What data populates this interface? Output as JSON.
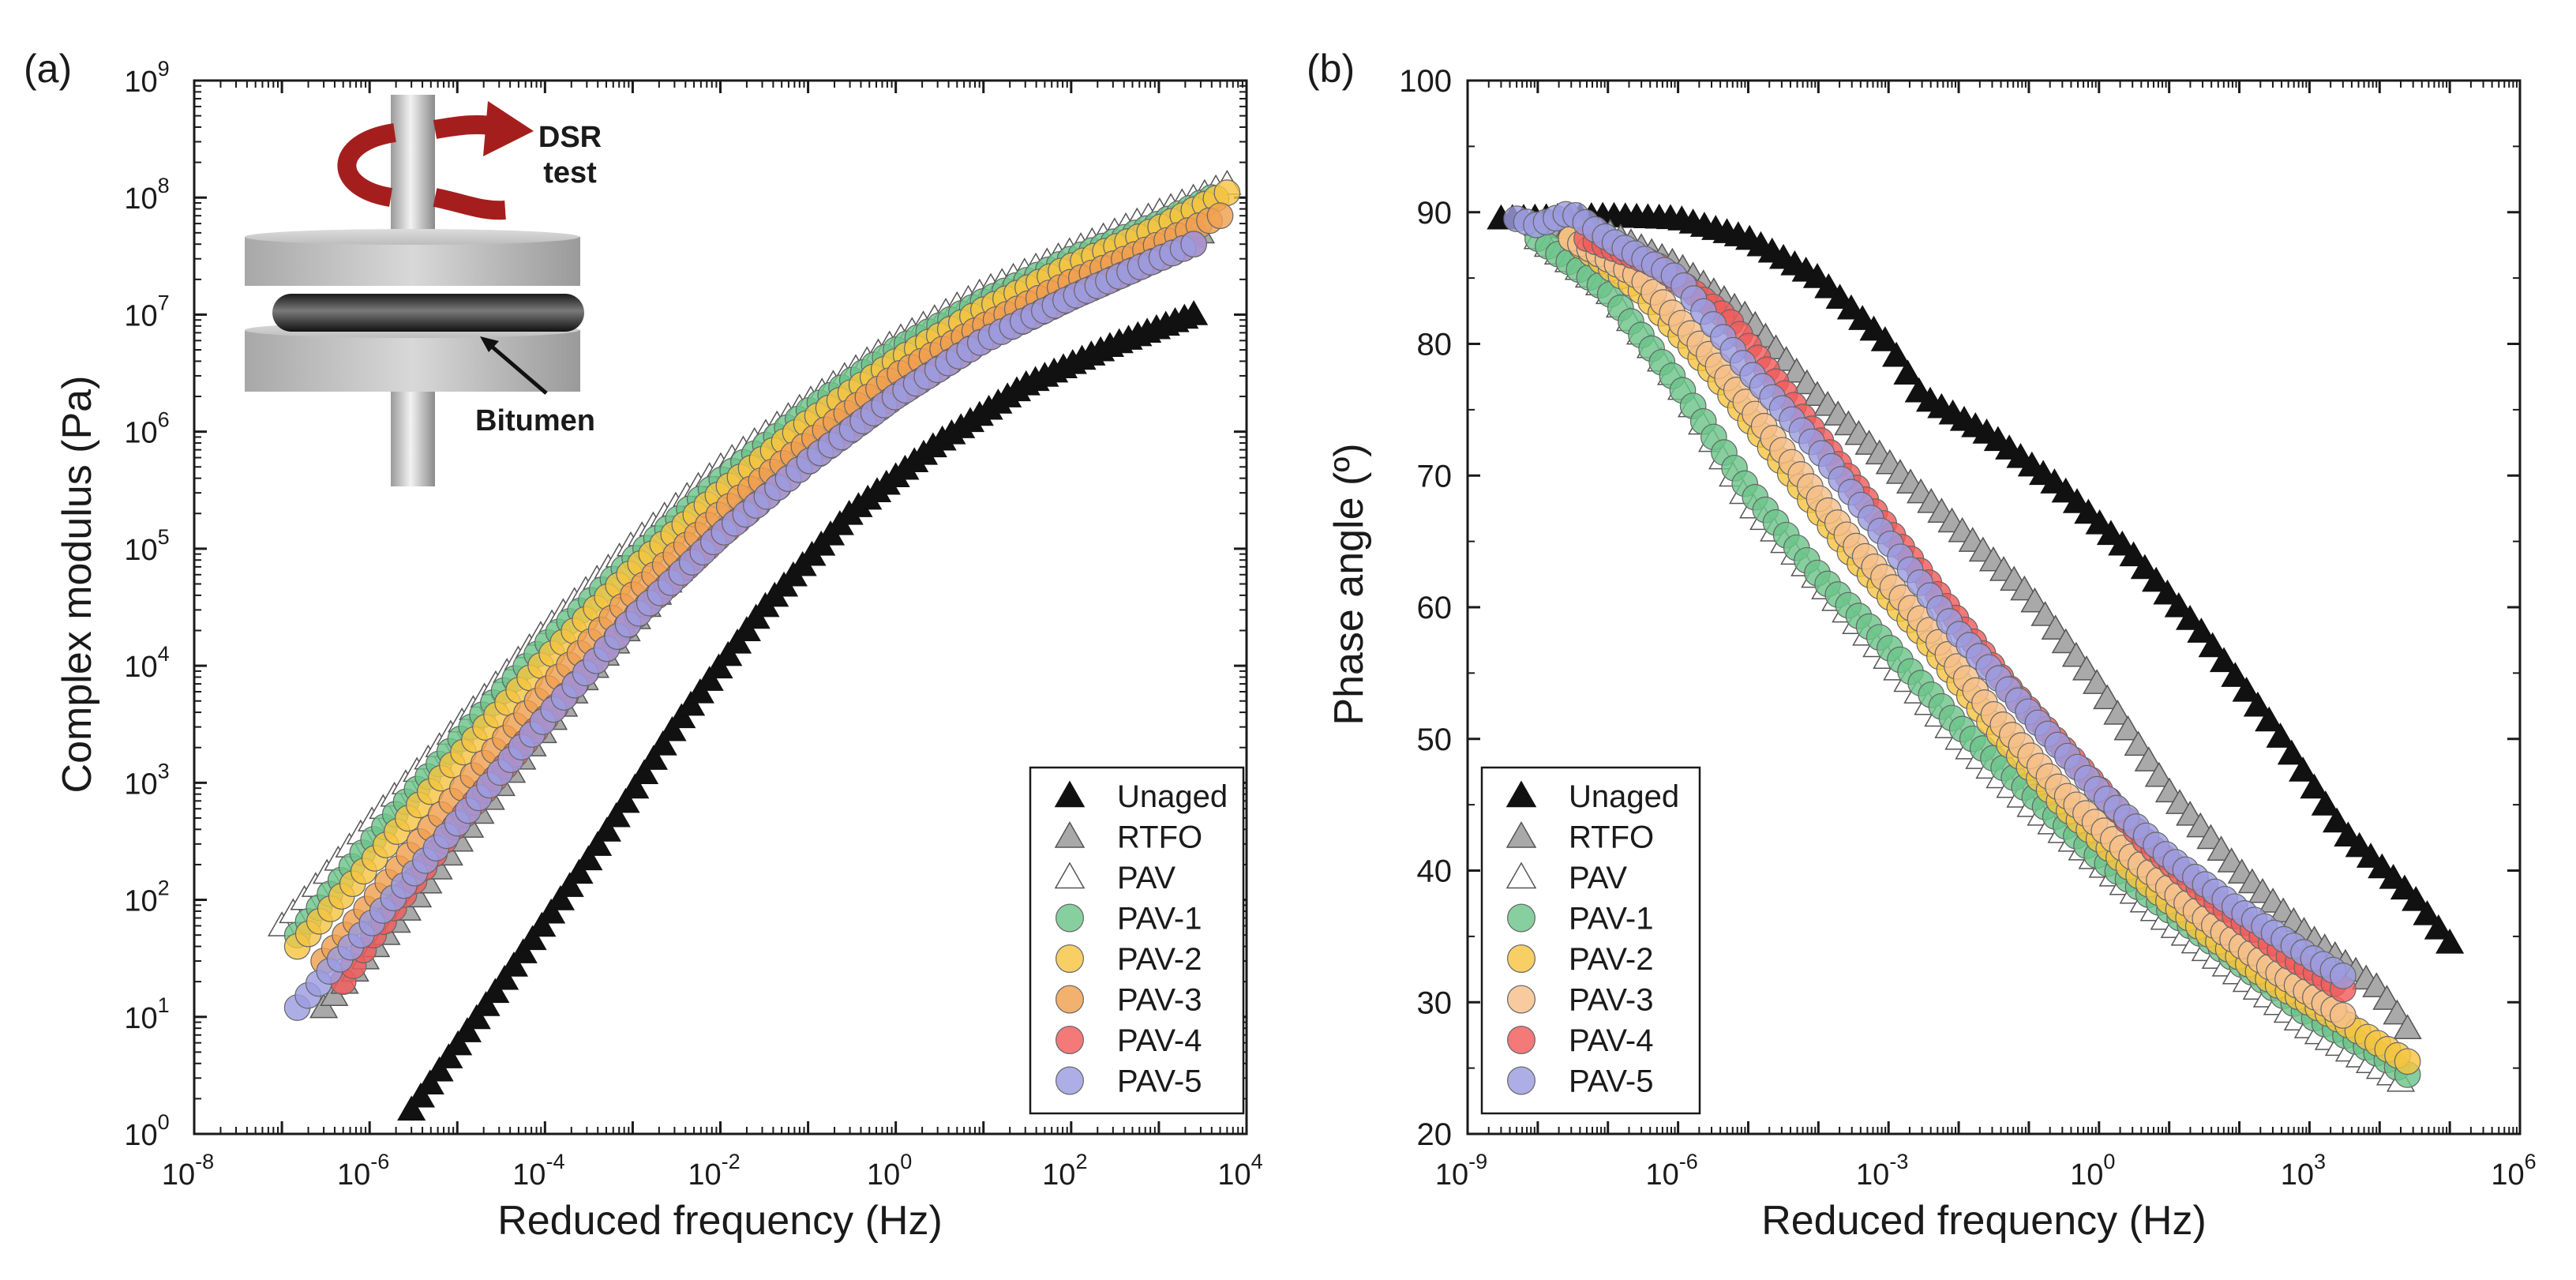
{
  "chart_data": [
    {
      "type": "scatter",
      "panel_label": "(a)",
      "xlabel": "Reduced frequency (Hz)",
      "ylabel": "Complex modulus (Pa)",
      "xscale": "log",
      "yscale": "log",
      "xlim": [
        1e-08,
        10000.0
      ],
      "ylim": [
        1,
        1000000000.0
      ],
      "x_tick_labels": [
        "10",
        "10",
        "10",
        "10",
        "10",
        "10",
        "10"
      ],
      "x_tick_exponents": [
        "-8",
        "-6",
        "-4",
        "-2",
        "0",
        "2",
        "4"
      ],
      "y_tick_labels": [
        "10",
        "10",
        "10",
        "10",
        "10",
        "10",
        "10",
        "10",
        "10",
        "10"
      ],
      "y_tick_exponents": [
        "0",
        "1",
        "2",
        "3",
        "4",
        "5",
        "6",
        "7",
        "8",
        "9"
      ],
      "legend_position": "bottom-right",
      "inset": {
        "title_line1": "DSR",
        "title_line2": "test",
        "label": "Bitumen"
      },
      "series": [
        {
          "name": "Unaged",
          "marker": "triangle-filled",
          "color": "#111111",
          "x_range": [
            3e-06,
            2500
          ],
          "y_range": [
            1.5,
            10000000.0
          ],
          "points": [
            [
              3e-06,
              1.6
            ],
            [
              3e-05,
              18
            ],
            [
              0.0003,
              210
            ],
            [
              0.003,
              3000.0
            ],
            [
              0.03,
              30000.0
            ],
            [
              0.3,
              200000.0
            ],
            [
              3,
              800000.0
            ],
            [
              30,
              2500000.0
            ],
            [
              300,
              5500000.0
            ],
            [
              2500,
              10000000.0
            ]
          ]
        },
        {
          "name": "RTFO",
          "marker": "triangle-filled",
          "color": "#a9a9a9",
          "x_range": [
            3e-07,
            3000
          ],
          "y_range": [
            12,
            50000000.0
          ],
          "points": [
            [
              3e-07,
              12
            ],
            [
              3e-06,
              90
            ],
            [
              3e-05,
              900
            ],
            [
              0.0003,
              8000.0
            ],
            [
              0.003,
              60000.0
            ],
            [
              0.03,
              350000.0
            ],
            [
              0.3,
              1500000.0
            ],
            [
              3,
              5000000.0
            ],
            [
              30,
              12000000.0
            ],
            [
              300,
              25000000.0
            ],
            [
              3000,
              50000000.0
            ]
          ]
        },
        {
          "name": "PAV",
          "marker": "triangle-open",
          "color": "#ffffff",
          "x_range": [
            1e-07,
            6000
          ],
          "y_range": [
            60,
            130000000.0
          ],
          "points": [
            [
              1e-07,
              60
            ],
            [
              1e-06,
              450
            ],
            [
              1e-05,
              3000.0
            ],
            [
              0.0001,
              20000.0
            ],
            [
              0.001,
              110000.0
            ],
            [
              0.01,
              500000.0
            ],
            [
              0.1,
              1800000.0
            ],
            [
              1,
              6000000.0
            ],
            [
              10,
              16000000.0
            ],
            [
              100,
              35000000.0
            ],
            [
              1000,
              75000000.0
            ],
            [
              6000,
              130000000.0
            ]
          ]
        },
        {
          "name": "PAV-1",
          "marker": "circle",
          "color": "#6cc58a",
          "x_range": [
            1.5e-07,
            4000
          ],
          "y_range": [
            50,
            100000000.0
          ],
          "points": [
            [
              1.5e-07,
              50
            ],
            [
              1e-06,
              300
            ],
            [
              1e-05,
              2200.0
            ],
            [
              0.0001,
              15000.0
            ],
            [
              0.001,
              80000.0
            ],
            [
              0.01,
              380000.0
            ],
            [
              0.1,
              1500000.0
            ],
            [
              1,
              5000000.0
            ],
            [
              10,
              13000000.0
            ],
            [
              100,
              30000000.0
            ],
            [
              1000,
              60000000.0
            ],
            [
              4000,
              100000000.0
            ]
          ]
        },
        {
          "name": "PAV-2",
          "marker": "circle",
          "color": "#f5c542",
          "x_range": [
            1.5e-07,
            6000
          ],
          "y_range": [
            40,
            110000000.0
          ],
          "points": [
            [
              1.5e-07,
              40
            ],
            [
              1e-06,
              200
            ],
            [
              1e-05,
              1600.0
            ],
            [
              0.0001,
              11000.0
            ],
            [
              0.001,
              65000.0
            ],
            [
              0.01,
              300000.0
            ],
            [
              0.1,
              1200000.0
            ],
            [
              1,
              4000000.0
            ],
            [
              10,
              11000000.0
            ],
            [
              100,
              26000000.0
            ],
            [
              1000,
              55000000.0
            ],
            [
              6000,
              110000000.0
            ]
          ]
        },
        {
          "name": "PAV-3",
          "marker": "circle",
          "color": "#f0a050",
          "x_range": [
            3e-07,
            5000
          ],
          "y_range": [
            30,
            70000000.0
          ],
          "points": [
            [
              3e-07,
              30
            ],
            [
              1e-06,
              90
            ],
            [
              1e-05,
              800
            ],
            [
              0.0001,
              6000.0
            ],
            [
              0.001,
              40000.0
            ],
            [
              0.01,
              200000.0
            ],
            [
              0.1,
              800000.0
            ],
            [
              1,
              3000000.0
            ],
            [
              10,
              8000000.0
            ],
            [
              100,
              19000000.0
            ],
            [
              1000,
              40000000.0
            ],
            [
              5000,
              70000000.0
            ]
          ]
        },
        {
          "name": "PAV-4",
          "marker": "circle",
          "color": "#f25c5c",
          "x_range": [
            5e-07,
            2500
          ],
          "y_range": [
            20,
            40000000.0
          ],
          "points": [
            [
              5e-07,
              20
            ],
            [
              1e-06,
              45
            ],
            [
              1e-05,
              450
            ],
            [
              0.0001,
              3500.0
            ],
            [
              0.001,
              25000.0
            ],
            [
              0.01,
              130000.0
            ],
            [
              0.1,
              550000.0
            ],
            [
              1,
              2000000.0
            ],
            [
              10,
              6000000.0
            ],
            [
              100,
              14000000.0
            ],
            [
              1000,
              30000000.0
            ],
            [
              2500,
              40000000.0
            ]
          ]
        },
        {
          "name": "PAV-5",
          "marker": "circle",
          "color": "#9c9ce0",
          "x_range": [
            1.5e-07,
            2500
          ],
          "y_range": [
            12,
            40000000.0
          ],
          "points": [
            [
              1.5e-07,
              12
            ],
            [
              1e-06,
              60
            ],
            [
              1e-05,
              450
            ],
            [
              0.0001,
              3500.0
            ],
            [
              0.001,
              25000.0
            ],
            [
              0.01,
              130000.0
            ],
            [
              0.1,
              550000.0
            ],
            [
              1,
              2000000.0
            ],
            [
              10,
              6000000.0
            ],
            [
              100,
              14000000.0
            ],
            [
              1000,
              30000000.0
            ],
            [
              2500,
              40000000.0
            ]
          ]
        }
      ]
    },
    {
      "type": "scatter",
      "panel_label": "(b)",
      "xlabel": "Reduced frequency (Hz)",
      "ylabel": "Phase angle (º)",
      "xscale": "log",
      "yscale": "linear",
      "xlim": [
        1e-09,
        1000000.0
      ],
      "ylim": [
        20,
        100
      ],
      "x_tick_labels": [
        "10",
        "10",
        "10",
        "10",
        "10",
        "10"
      ],
      "x_tick_exponents": [
        "-9",
        "-6",
        "-3",
        "0",
        "3",
        "6"
      ],
      "y_tick_labels": [
        "20",
        "30",
        "40",
        "50",
        "60",
        "70",
        "80",
        "90",
        "100"
      ],
      "legend_position": "bottom-left",
      "series": [
        {
          "name": "Unaged",
          "marker": "triangle-filled",
          "color": "#111111",
          "points": [
            [
              3e-09,
              89.5
            ],
            [
              1e-07,
              89.7
            ],
            [
              1e-06,
              89.5
            ],
            [
              1e-05,
              88
            ],
            [
              0.0001,
              85
            ],
            [
              0.001,
              80
            ],
            [
              0.003,
              76
            ],
            [
              0.03,
              73
            ],
            [
              0.3,
              69
            ],
            [
              3,
              64
            ],
            [
              30,
              58
            ],
            [
              300,
              51
            ],
            [
              3000,
              43
            ],
            [
              30000,
              38
            ],
            [
              100000,
              34.5
            ]
          ]
        },
        {
          "name": "RTFO",
          "marker": "triangle-filled",
          "color": "#a9a9a9",
          "points": [
            [
              1e-08,
              89
            ],
            [
              1e-07,
              88.5
            ],
            [
              1e-06,
              86
            ],
            [
              1e-05,
              82
            ],
            [
              0.0001,
              76
            ],
            [
              0.001,
              71
            ],
            [
              0.01,
              66
            ],
            [
              0.1,
              61
            ],
            [
              1,
              54
            ],
            [
              10,
              46
            ],
            [
              100,
              40
            ],
            [
              1000,
              35
            ],
            [
              10000,
              31
            ],
            [
              25000,
              28
            ]
          ]
        },
        {
          "name": "PAV",
          "marker": "triangle-open",
          "color": "#ffffff",
          "points": [
            [
              1e-08,
              88
            ],
            [
              1e-07,
              84
            ],
            [
              1e-06,
              77
            ],
            [
              1e-05,
              68
            ],
            [
              0.0001,
              62
            ],
            [
              0.001,
              56
            ],
            [
              0.01,
              50
            ],
            [
              0.1,
              45
            ],
            [
              1,
              40.5
            ],
            [
              10,
              36
            ],
            [
              100,
              32
            ],
            [
              1000,
              28
            ],
            [
              10000,
              25
            ],
            [
              20000,
              24
            ]
          ]
        },
        {
          "name": "PAV-1",
          "marker": "circle",
          "color": "#6cc58a",
          "points": [
            [
              1e-08,
              88
            ],
            [
              1e-07,
              84
            ],
            [
              1e-06,
              77
            ],
            [
              1e-05,
              69
            ],
            [
              0.0001,
              62.5
            ],
            [
              0.001,
              57
            ],
            [
              0.01,
              51
            ],
            [
              0.1,
              46
            ],
            [
              1,
              41
            ],
            [
              10,
              37
            ],
            [
              100,
              33
            ],
            [
              1000,
              29
            ],
            [
              10000,
              26
            ],
            [
              25000,
              24.5
            ]
          ]
        },
        {
          "name": "PAV-2",
          "marker": "circle",
          "color": "#f5c542",
          "points": [
            [
              3e-08,
              88
            ],
            [
              3e-07,
              84
            ],
            [
              3e-06,
              78
            ],
            [
              3e-05,
              71
            ],
            [
              0.0003,
              64
            ],
            [
              0.003,
              58
            ],
            [
              0.03,
              51
            ],
            [
              0.3,
              45
            ],
            [
              3,
              40
            ],
            [
              30,
              35.5
            ],
            [
              300,
              31.5
            ],
            [
              3000,
              28.5
            ],
            [
              25000,
              25.5
            ]
          ]
        },
        {
          "name": "PAV-3",
          "marker": "circle",
          "color": "#f5bf8a",
          "points": [
            [
              3e-08,
              88
            ],
            [
              3e-07,
              85
            ],
            [
              3e-06,
              79
            ],
            [
              3e-05,
              72
            ],
            [
              0.0003,
              65
            ],
            [
              0.003,
              59
            ],
            [
              0.03,
              52
            ],
            [
              0.3,
              46
            ],
            [
              3,
              41
            ],
            [
              30,
              36.5
            ],
            [
              300,
              32.5
            ],
            [
              3000,
              29
            ]
          ]
        },
        {
          "name": "PAV-4",
          "marker": "circle",
          "color": "#f25c5c",
          "points": [
            [
              5e-08,
              88
            ],
            [
              5e-07,
              86
            ],
            [
              5e-06,
              82
            ],
            [
              5e-05,
              75
            ],
            [
              0.0005,
              68
            ],
            [
              0.005,
              61
            ],
            [
              0.05,
              54
            ],
            [
              0.5,
              48
            ],
            [
              5,
              42
            ],
            [
              50,
              37.5
            ],
            [
              500,
              33.5
            ],
            [
              3000,
              31
            ]
          ]
        },
        {
          "name": "PAV-5",
          "marker": "circle",
          "color": "#9c9ce0",
          "points": [
            [
              5e-09,
              89.5
            ],
            [
              1e-08,
              89
            ],
            [
              3e-08,
              90
            ],
            [
              1e-07,
              88
            ],
            [
              1e-06,
              85
            ],
            [
              1e-05,
              78
            ],
            [
              0.0001,
              72
            ],
            [
              0.001,
              65
            ],
            [
              0.01,
              58
            ],
            [
              0.1,
              52
            ],
            [
              1,
              46
            ],
            [
              10,
              41
            ],
            [
              100,
              37
            ],
            [
              1000,
              33.5
            ],
            [
              3000,
              32
            ]
          ]
        }
      ]
    }
  ]
}
